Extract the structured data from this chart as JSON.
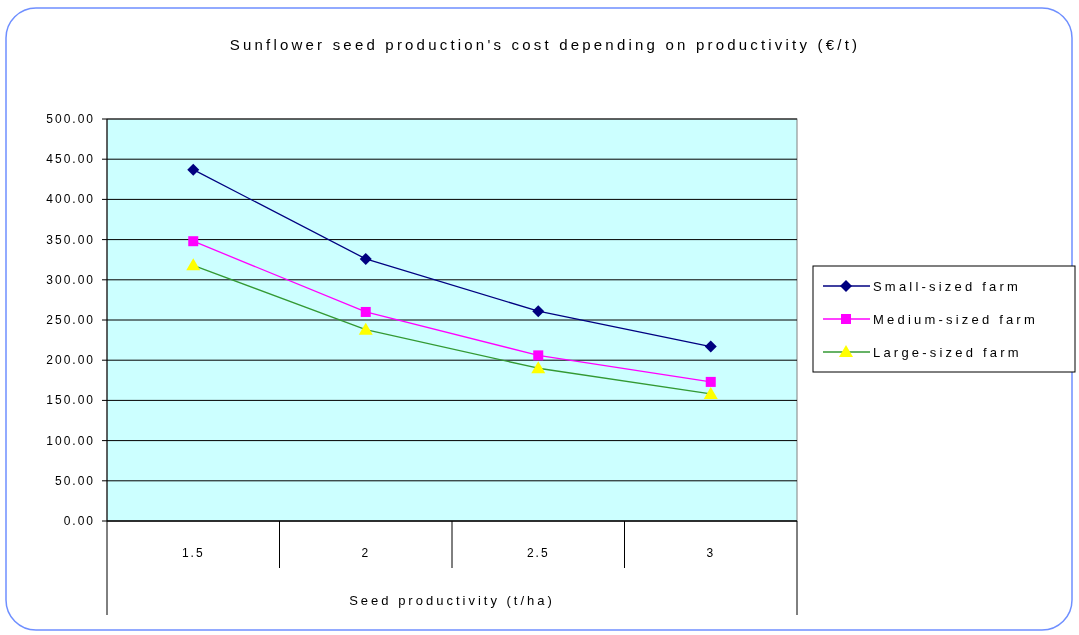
{
  "chart_data": {
    "type": "line",
    "title": "Sunflower seed production's cost depending on productivity (€/t)",
    "xlabel": "Seed productivity (t/ha)",
    "categories": [
      "1.5",
      "2",
      "2.5",
      "3"
    ],
    "series": [
      {
        "name": "Small-sized farm",
        "color": "#000080",
        "marker": "diamond",
        "values": [
          437,
          326,
          261,
          217
        ]
      },
      {
        "name": "Medium-sized farm",
        "color": "#ff00ff",
        "marker": "square",
        "values": [
          348,
          260,
          206,
          173
        ]
      },
      {
        "name": "Large-sized farm",
        "color": "#339933",
        "marker": "triangle",
        "values": [
          318,
          238,
          190,
          158
        ]
      }
    ],
    "ylim": [
      0,
      500
    ],
    "yticks": [
      {
        "value": 0,
        "label": "0.00"
      },
      {
        "value": 50,
        "label": "50.00"
      },
      {
        "value": 100,
        "label": "100.00"
      },
      {
        "value": 150,
        "label": "150.00"
      },
      {
        "value": 200,
        "label": "200.00"
      },
      {
        "value": 250,
        "label": "250.00"
      },
      {
        "value": 300,
        "label": "300.00"
      },
      {
        "value": 350,
        "label": "350.00"
      },
      {
        "value": 400,
        "label": "400.00"
      },
      {
        "value": 450,
        "label": "450.00"
      },
      {
        "value": 500,
        "label": "500.00"
      }
    ],
    "grid": "y",
    "legend": "right"
  }
}
